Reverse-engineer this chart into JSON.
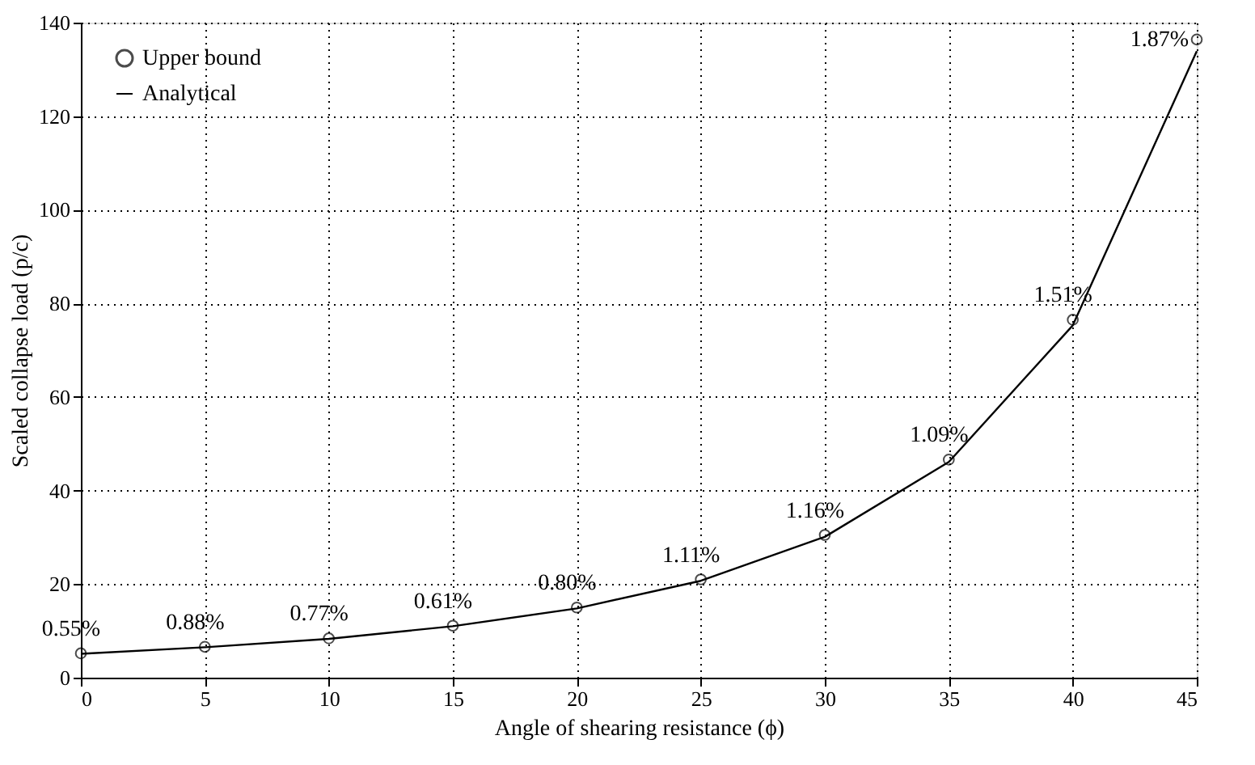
{
  "chart_data": {
    "type": "line",
    "xlabel": "Angle of shearing resistance (ϕ)",
    "ylabel": "Scaled collapse load (p/c)",
    "x": [
      0,
      5,
      10,
      15,
      20,
      25,
      30,
      35,
      40,
      45
    ],
    "series": [
      {
        "name": "Upper bound",
        "type": "scatter",
        "marker": "circle",
        "color": "#000000",
        "values": [
          5.2,
          6.6,
          8.4,
          11.1,
          15.0,
          21.0,
          30.5,
          46.6,
          76.5,
          136.4
        ]
      },
      {
        "name": "Analytical",
        "type": "line",
        "marker": "none",
        "line_style": "solid",
        "color": "#000000",
        "values": [
          5.1,
          6.5,
          8.3,
          11.0,
          14.8,
          20.7,
          30.1,
          46.1,
          75.3,
          133.9
        ]
      }
    ],
    "annotations": [
      {
        "text": "0.55%",
        "x": 0,
        "y": 5.2
      },
      {
        "text": "0.88%",
        "x": 5,
        "y": 6.6
      },
      {
        "text": "0.77%",
        "x": 10,
        "y": 8.4
      },
      {
        "text": "0.61%",
        "x": 15,
        "y": 11.1
      },
      {
        "text": "0.80%",
        "x": 20,
        "y": 15.0
      },
      {
        "text": "1.11%",
        "x": 25,
        "y": 21.0
      },
      {
        "text": "1.16%",
        "x": 30,
        "y": 30.5
      },
      {
        "text": "1.09%",
        "x": 35,
        "y": 46.6
      },
      {
        "text": "1.51%",
        "x": 40,
        "y": 76.5
      },
      {
        "text": "1.87%",
        "x": 45,
        "y": 136.4
      }
    ],
    "xlim": [
      0,
      45
    ],
    "xticks": [
      0,
      5,
      10,
      15,
      20,
      25,
      30,
      35,
      40,
      45
    ],
    "ylim": [
      0,
      140
    ],
    "yticks": [
      0,
      20,
      40,
      60,
      80,
      100,
      120,
      140
    ],
    "grid": true,
    "legend": "top left"
  }
}
